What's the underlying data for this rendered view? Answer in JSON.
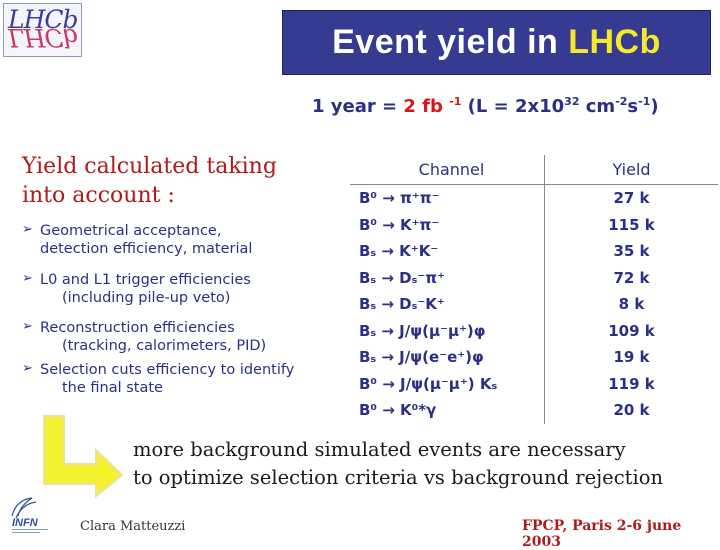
{
  "logo": {
    "top": "LHCb",
    "bottom": "LHCb"
  },
  "title": {
    "prefix": "Event yield in ",
    "highlight": "LHCb"
  },
  "luminosity": {
    "prefix": "1 year = ",
    "value": "2 fb",
    "exp": "-1",
    "rest": " (L = 2x10",
    "exp2": "32",
    "unit": " cm",
    "exp3": "-2",
    "s": "s",
    "exp4": "-1",
    "close": ")"
  },
  "intro": "Yield calculated taking into account :",
  "bullets": [
    {
      "main": "Geometrical acceptance,",
      "sub": "detection efficiency, material"
    },
    {
      "main": "L0 and L1 trigger efficiencies",
      "sub": "(including pile-up veto)"
    },
    {
      "main": "Reconstruction efficiencies",
      "sub": "(tracking, calorimeters, PID)"
    },
    {
      "main": "Selection cuts efficiency to identify",
      "sub": "the final state"
    }
  ],
  "table": {
    "header_channel": "Channel",
    "header_yield": "Yield",
    "rows": [
      {
        "channel": "B⁰ → π⁺π⁻",
        "yield": "27 k"
      },
      {
        "channel": "B⁰ → K⁺π⁻",
        "yield": "115 k"
      },
      {
        "channel": "Bₛ → K⁺K⁻",
        "yield": "35 k"
      },
      {
        "channel": "Bₛ → Dₛ⁻π⁺",
        "yield": "72 k"
      },
      {
        "channel": "Bₛ → Dₛ⁻K⁺",
        "yield": "8 k"
      },
      {
        "channel": "Bₛ → J/ψ(μ⁻μ⁺)φ",
        "yield": "109 k"
      },
      {
        "channel": "Bₛ → J/ψ(e⁻e⁺)φ",
        "yield": "19 k"
      },
      {
        "channel": "B⁰ → J/ψ(μ⁻μ⁺) Kₛ",
        "yield": "119 k"
      },
      {
        "channel": "B⁰ → K⁰*γ",
        "yield": "20 k"
      }
    ]
  },
  "conclusion": {
    "line1": "more background simulated events are necessary",
    "line2": "to optimize selection criteria vs background rejection"
  },
  "footer": {
    "author": "Clara Matteuzzi",
    "event": "FPCP, Paris 2-6 june 2003"
  },
  "icons": {
    "bullet": "arrowhead-bullet-icon",
    "arrow": "l-shaped-arrow-icon",
    "infn": "infn-logo"
  },
  "colors": {
    "title_bg": "#363b92",
    "title_hl": "#f4ea2a",
    "body_text": "#2b2f86",
    "red_text": "#ae1a1a",
    "arrow_fill": "#f6f12f"
  }
}
